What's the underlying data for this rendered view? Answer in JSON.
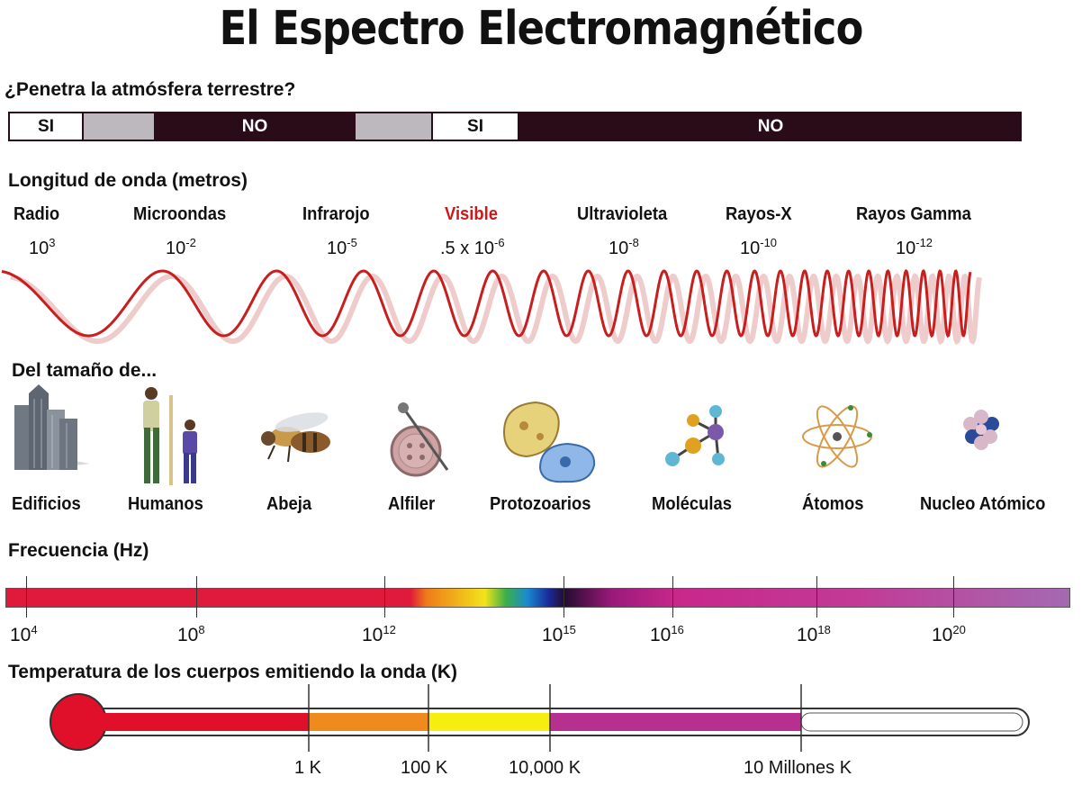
{
  "title": "El Espectro Electromagnético",
  "atmosphere": {
    "heading": "¿Penetra la atmósfera terrestre?",
    "segments": [
      {
        "label": "SI",
        "kind": "si"
      },
      {
        "label": "",
        "kind": "gray"
      },
      {
        "label": "NO",
        "kind": "no"
      },
      {
        "label": "",
        "kind": "gray"
      },
      {
        "label": "SI",
        "kind": "si"
      },
      {
        "label": "NO",
        "kind": "no"
      }
    ]
  },
  "wavelength": {
    "heading": "Longitud de onda (metros)",
    "bands": [
      {
        "name": "Radio",
        "value": "10",
        "exp": "3"
      },
      {
        "name": "Microondas",
        "value": "10",
        "exp": "-2"
      },
      {
        "name": "Infrarojo",
        "value": "10",
        "exp": "-5"
      },
      {
        "name": "Visible",
        "value": ".5 x 10",
        "exp": "-6"
      },
      {
        "name": "Ultravioleta",
        "value": "10",
        "exp": "-8"
      },
      {
        "name": "Rayos-X",
        "value": "10",
        "exp": "-10"
      },
      {
        "name": "Rayos Gamma",
        "value": "10",
        "exp": "-12"
      }
    ],
    "visible_color": "#d01818",
    "wave_color": "#c81e1e"
  },
  "size": {
    "heading": "Del tamaño de...",
    "objects": [
      {
        "label": "Edificios",
        "icon": "buildings-icon"
      },
      {
        "label": "Humanos",
        "icon": "humans-icon"
      },
      {
        "label": "Abeja",
        "icon": "bee-icon"
      },
      {
        "label": "Alfiler",
        "icon": "pin-button-icon"
      },
      {
        "label": "Protozoarios",
        "icon": "protozoa-icon"
      },
      {
        "label": "Moléculas",
        "icon": "molecule-icon"
      },
      {
        "label": "Átomos",
        "icon": "atom-icon"
      },
      {
        "label": "Nucleo Atómico",
        "icon": "nucleus-icon"
      }
    ]
  },
  "frequency": {
    "heading": "Frecuencia (Hz)",
    "ticks": [
      {
        "base": "10",
        "exp": "4"
      },
      {
        "base": "10",
        "exp": "8"
      },
      {
        "base": "10",
        "exp": "12"
      },
      {
        "base": "10",
        "exp": "15"
      },
      {
        "base": "10",
        "exp": "16"
      },
      {
        "base": "10",
        "exp": "18"
      },
      {
        "base": "10",
        "exp": "20"
      }
    ]
  },
  "temperature": {
    "heading": "Temperatura de los cuerpos emitiendo la onda (K)",
    "ticks": [
      "1 K",
      "100 K",
      "10,000 K",
      "10 Millones K"
    ],
    "colors": {
      "red": "#e0102a",
      "orange": "#ef8a1e",
      "yellow": "#f6ee10",
      "magenta": "#b5308f"
    }
  }
}
